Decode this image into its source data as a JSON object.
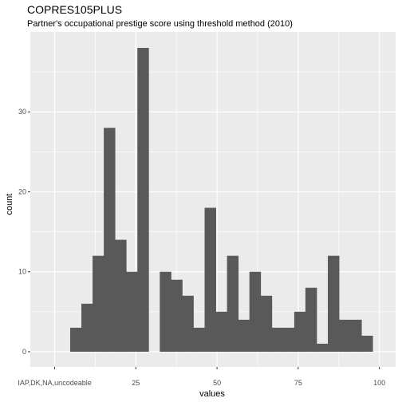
{
  "chart_data": {
    "type": "bar",
    "title": "COPRES105PLUS",
    "subtitle": "Partner's occupational prestige score using threshold method (2010)",
    "xlabel": "values",
    "ylabel": "count",
    "grid": true,
    "x_ticks": [
      {
        "value": 0,
        "label": "IAP,DK,NA,uncodeable"
      },
      {
        "value": 25,
        "label": "25"
      },
      {
        "value": 50,
        "label": "50"
      },
      {
        "value": 75,
        "label": "75"
      },
      {
        "value": 100,
        "label": "100"
      }
    ],
    "y_ticks": [
      0,
      10,
      20,
      30
    ],
    "xlim": [
      -7.5,
      105
    ],
    "ylim": [
      -1.9,
      40
    ],
    "bin_width": 3.45,
    "bins": [
      {
        "x": 6.5,
        "count": 3
      },
      {
        "x": 9.95,
        "count": 6
      },
      {
        "x": 13.4,
        "count": 12
      },
      {
        "x": 16.85,
        "count": 28
      },
      {
        "x": 20.3,
        "count": 14
      },
      {
        "x": 23.75,
        "count": 10
      },
      {
        "x": 27.2,
        "count": 38
      },
      {
        "x": 30.65,
        "count": 0
      },
      {
        "x": 34.1,
        "count": 10
      },
      {
        "x": 37.55,
        "count": 9
      },
      {
        "x": 41.0,
        "count": 7
      },
      {
        "x": 44.45,
        "count": 3
      },
      {
        "x": 47.9,
        "count": 18
      },
      {
        "x": 51.35,
        "count": 5
      },
      {
        "x": 54.8,
        "count": 12
      },
      {
        "x": 58.25,
        "count": 4
      },
      {
        "x": 61.7,
        "count": 10
      },
      {
        "x": 65.15,
        "count": 7
      },
      {
        "x": 68.6,
        "count": 3
      },
      {
        "x": 72.05,
        "count": 3
      },
      {
        "x": 75.5,
        "count": 5
      },
      {
        "x": 78.95,
        "count": 8
      },
      {
        "x": 82.4,
        "count": 1
      },
      {
        "x": 85.85,
        "count": 12
      },
      {
        "x": 89.3,
        "count": 4
      },
      {
        "x": 92.75,
        "count": 4
      },
      {
        "x": 96.2,
        "count": 2
      }
    ],
    "colors": {
      "bar": "#595959",
      "panel": "#ebebeb",
      "grid": "#ffffff"
    }
  }
}
